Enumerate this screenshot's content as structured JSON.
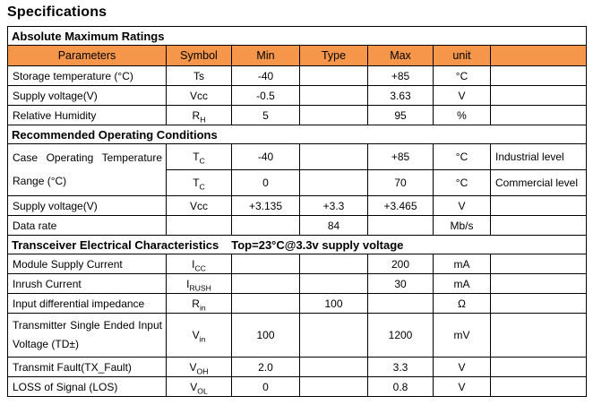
{
  "page": {
    "title": "Specifications"
  },
  "table": {
    "accent_color": "#F5964A",
    "border_color": "#000000",
    "columns": [
      "Parameters",
      "Symbol",
      "Min",
      "Type",
      "Max",
      "unit",
      ""
    ],
    "sections": [
      {
        "title": "Absolute Maximum Ratings",
        "subtitle": "",
        "rows": [
          {
            "parameter": {
              "text": "Storage temperature (°C)"
            },
            "symbol": {
              "base": "Ts",
              "sub": ""
            },
            "min": "-40",
            "type": "",
            "max": "+85",
            "unit": "°C",
            "note": ""
          },
          {
            "parameter": {
              "text": "Supply voltage(V)"
            },
            "symbol": {
              "base": "Vcc",
              "sub": ""
            },
            "min": "-0.5",
            "type": "",
            "max": "3.63",
            "unit": "V",
            "note": ""
          },
          {
            "parameter": {
              "text": "Relative Humidity"
            },
            "symbol": {
              "base": "R",
              "sub": "H"
            },
            "min": "5",
            "type": "",
            "max": "95",
            "unit": "%",
            "note": ""
          }
        ]
      },
      {
        "title": "Recommended Operating Conditions",
        "subtitle": "",
        "rows": [
          {
            "parameter": {
              "text": "Case Operating Temperature Range (°C)",
              "rowspan": 2,
              "justify": true
            },
            "symbol": {
              "base": "T",
              "sub": "C"
            },
            "min": "-40",
            "type": "",
            "max": "+85",
            "unit": "°C",
            "note": "Industrial level"
          },
          {
            "parameter": null,
            "symbol": {
              "base": "T",
              "sub": "C"
            },
            "min": "0",
            "type": "",
            "max": "70",
            "unit": "°C",
            "note": "Commercial level"
          },
          {
            "parameter": {
              "text": "Supply voltage(V)"
            },
            "symbol": {
              "base": "Vcc",
              "sub": ""
            },
            "min": "+3.135",
            "type": "+3.3",
            "max": "+3.465",
            "unit": "V",
            "note": ""
          },
          {
            "parameter": {
              "text": "Data rate"
            },
            "symbol": {
              "base": "",
              "sub": ""
            },
            "min": "",
            "type": "84",
            "max": "",
            "unit": "Mb/s",
            "note": ""
          }
        ]
      },
      {
        "title": "Transceiver Electrical Characteristics",
        "subtitle": "Top=23°C@3.3v supply voltage",
        "rows": [
          {
            "parameter": {
              "text": "Module Supply Current"
            },
            "symbol": {
              "base": "I",
              "sub": "CC"
            },
            "min": "",
            "type": "",
            "max": "200",
            "unit": "mA",
            "note": ""
          },
          {
            "parameter": {
              "text": "Inrush Current"
            },
            "symbol": {
              "base": "I",
              "sub": "RUSH"
            },
            "min": "",
            "type": "",
            "max": "30",
            "unit": "mA",
            "note": ""
          },
          {
            "parameter": {
              "text": "Input differential impedance"
            },
            "symbol": {
              "base": "R",
              "sub": "in"
            },
            "min": "",
            "type": "100",
            "max": "",
            "unit": "Ω",
            "note": ""
          },
          {
            "parameter": {
              "text": "Transmitter Single Ended Input Voltage (TD±)",
              "justify": true
            },
            "symbol": {
              "base": "V",
              "sub": "in"
            },
            "min": "100",
            "type": "",
            "max": "1200",
            "unit": "mV",
            "note": ""
          },
          {
            "parameter": {
              "text": "Transmit Fault(TX_Fault)"
            },
            "symbol": {
              "base": "V",
              "sub": "OH"
            },
            "min": "2.0",
            "type": "",
            "max": "3.3",
            "unit": "V",
            "note": ""
          },
          {
            "parameter": {
              "text": "LOSS of Signal (LOS)"
            },
            "symbol": {
              "base": "V",
              "sub": "OL"
            },
            "min": "0",
            "type": "",
            "max": "0.8",
            "unit": "V",
            "note": ""
          }
        ]
      }
    ]
  }
}
